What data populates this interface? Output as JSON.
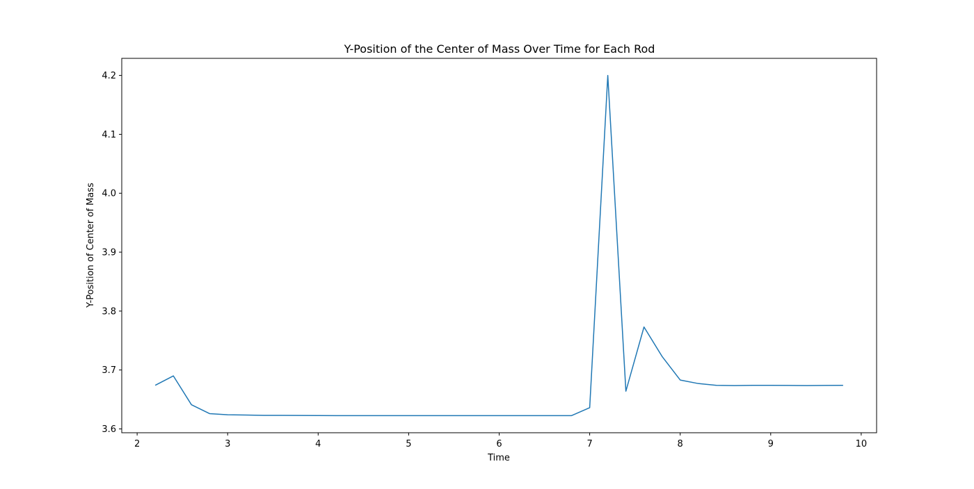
{
  "chart_data": {
    "type": "line",
    "title": "Y-Position of the Center of Mass Over Time for Each Rod",
    "xlabel": "Time",
    "ylabel": "Y-Position of Center of Mass",
    "xlim": [
      1.83,
      10.17
    ],
    "ylim": [
      3.5935,
      4.229
    ],
    "xticks": [
      2,
      3,
      4,
      5,
      6,
      7,
      8,
      9,
      10
    ],
    "yticks": [
      3.6,
      3.7,
      3.8,
      3.9,
      4.0,
      4.1,
      4.2
    ],
    "xtick_labels": [
      "2",
      "3",
      "4",
      "5",
      "6",
      "7",
      "8",
      "9",
      "10"
    ],
    "ytick_labels": [
      "3.6",
      "3.7",
      "3.8",
      "3.9",
      "4.0",
      "4.1",
      "4.2"
    ],
    "grid": false,
    "series": [
      {
        "color": "#1f77b4",
        "x": [
          2.2,
          2.4,
          2.6,
          2.8,
          3.0,
          3.2,
          3.4,
          3.6,
          3.8,
          4.0,
          4.2,
          4.4,
          4.6,
          4.8,
          5.0,
          5.2,
          5.4,
          5.6,
          5.8,
          6.0,
          6.2,
          6.4,
          6.6,
          6.8,
          7.0,
          7.2,
          7.4,
          7.6,
          7.8,
          8.0,
          8.2,
          8.4,
          8.6,
          8.8,
          9.0,
          9.2,
          9.4,
          9.6,
          9.8
        ],
        "y": [
          3.674,
          3.69,
          3.641,
          3.626,
          3.624,
          3.6235,
          3.623,
          3.623,
          3.6228,
          3.6227,
          3.6226,
          3.6226,
          3.6226,
          3.6226,
          3.6226,
          3.6226,
          3.6226,
          3.6226,
          3.6226,
          3.6226,
          3.6226,
          3.6226,
          3.6226,
          3.6226,
          3.636,
          4.2,
          3.664,
          3.773,
          3.723,
          3.683,
          3.677,
          3.674,
          3.6735,
          3.674,
          3.674,
          3.6738,
          3.6735,
          3.6738,
          3.674
        ]
      }
    ]
  }
}
